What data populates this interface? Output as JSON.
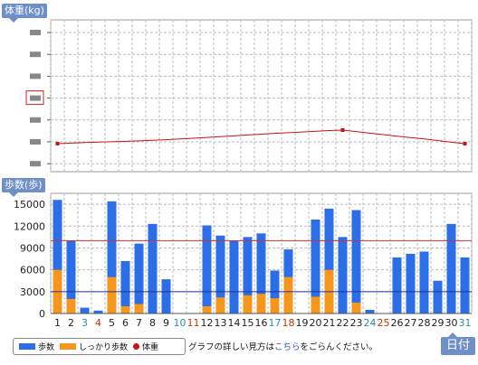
{
  "labels": {
    "weight_axis": "体重(kg)",
    "steps_axis": "歩数(歩)",
    "day_axis": "日付"
  },
  "legend": {
    "steps": "歩数",
    "firm_steps": "しっかり歩数",
    "weight": "体重"
  },
  "guide": {
    "before": "グラフの詳しい見方は",
    "link": "こちら",
    "after": "をごらんください。"
  },
  "colors": {
    "steps": "#2b6ee8",
    "firm_steps": "#f7961d",
    "weight": "#cc1111",
    "weekday": "#222222",
    "saturday": "#2a8fa8",
    "holiday": "#cc3300",
    "target_line": "#cc3333",
    "base_line": "#223399"
  },
  "chart_data": [
    {
      "type": "line",
      "ylabel": "体重(kg)",
      "y_ticks": 7,
      "x": [
        1,
        3,
        5,
        7,
        9,
        11,
        13,
        15,
        17,
        19,
        21,
        22,
        24,
        26,
        28,
        30,
        31
      ],
      "series": [
        {
          "name": "体重",
          "values": [
            4.0,
            4.05,
            4.08,
            4.12,
            4.17,
            4.23,
            4.3,
            4.37,
            4.44,
            4.5,
            4.56,
            4.58,
            4.45,
            4.32,
            4.2,
            4.06,
            4.0
          ]
        }
      ],
      "ylim": [
        2.8,
        9.3
      ],
      "grid": true
    },
    {
      "type": "bar",
      "ylabel": "歩数(歩)",
      "xlabel": "日付",
      "categories": [
        "1",
        "2",
        "3",
        "4",
        "5",
        "6",
        "7",
        "8",
        "9",
        "10",
        "11",
        "12",
        "13",
        "14",
        "15",
        "16",
        "17",
        "18",
        "19",
        "20",
        "21",
        "22",
        "23",
        "24",
        "25",
        "26",
        "27",
        "28",
        "29",
        "30",
        "31"
      ],
      "day_types": [
        "w",
        "w",
        "s",
        "h",
        "w",
        "w",
        "w",
        "w",
        "w",
        "s",
        "h",
        "w",
        "w",
        "w",
        "w",
        "w",
        "s",
        "h",
        "w",
        "w",
        "w",
        "w",
        "w",
        "s",
        "h",
        "w",
        "w",
        "w",
        "w",
        "w",
        "s"
      ],
      "series": [
        {
          "name": "歩数",
          "values": [
            15600,
            10000,
            800,
            400,
            15400,
            7200,
            9600,
            12300,
            4700,
            0,
            0,
            12100,
            10700,
            10000,
            10500,
            11000,
            5900,
            8800,
            0,
            12900,
            14400,
            10500,
            14200,
            500,
            0,
            7700,
            8200,
            8500,
            4500,
            12300,
            7700
          ]
        },
        {
          "name": "しっかり歩数",
          "values": [
            6000,
            2000,
            0,
            0,
            5000,
            1000,
            1300,
            0,
            0,
            0,
            0,
            1000,
            2200,
            0,
            2500,
            2700,
            2100,
            5000,
            0,
            2300,
            6000,
            0,
            1500,
            0,
            0,
            0,
            0,
            0,
            0,
            0,
            0
          ]
        }
      ],
      "y_ticks": [
        0,
        3000,
        6000,
        9000,
        12000,
        15000
      ],
      "ylim": [
        0,
        16500
      ],
      "reference_lines": [
        10000,
        3000
      ],
      "grid": true
    }
  ]
}
